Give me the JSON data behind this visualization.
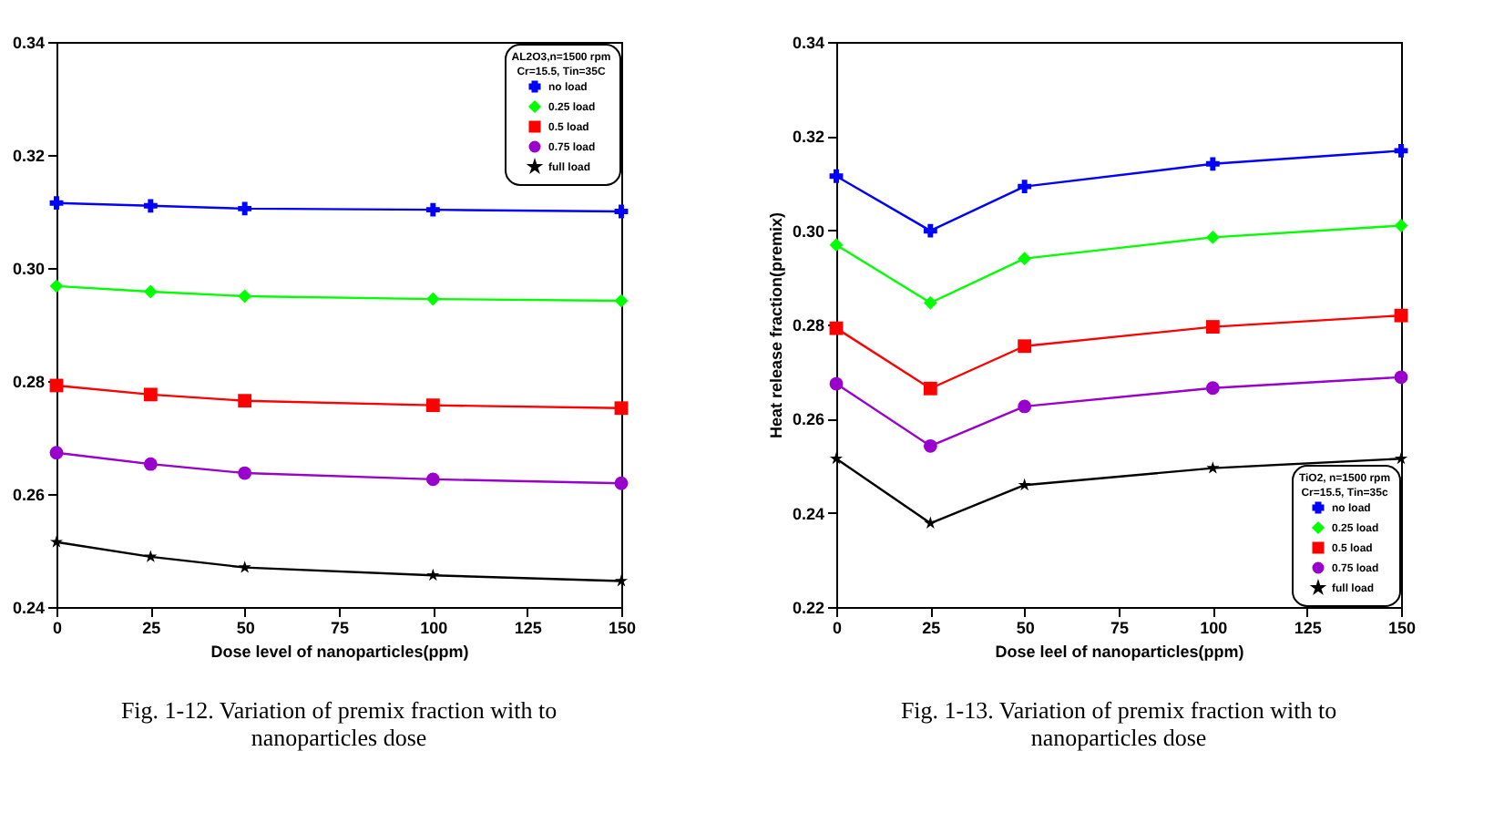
{
  "chart_data": [
    {
      "type": "line",
      "xlabel": "Dose level of nanoparticles(ppm)",
      "legend_title": "AL2O3,n=1500 rpm\nCr=15.5, Tin=35C",
      "x": [
        0,
        25,
        50,
        100,
        150
      ],
      "series": [
        {
          "name": "no load",
          "color": "#0000ff",
          "marker": "cross",
          "values": [
            0.3115,
            0.311,
            0.3105,
            0.3103,
            0.31
          ]
        },
        {
          "name": "0.25 load",
          "color": "#00ff00",
          "marker": "diamond",
          "values": [
            0.2968,
            0.2958,
            0.295,
            0.2945,
            0.2942
          ]
        },
        {
          "name": "0.5 load",
          "color": "#ff0000",
          "marker": "square",
          "values": [
            0.2792,
            0.2776,
            0.2765,
            0.2757,
            0.2752
          ]
        },
        {
          "name": "0.75 load",
          "color": "#9900cc",
          "marker": "circle",
          "values": [
            0.2673,
            0.2653,
            0.2637,
            0.2626,
            0.2619
          ]
        },
        {
          "name": "full load",
          "color": "#000000",
          "marker": "star",
          "values": [
            0.2515,
            0.2489,
            0.247,
            0.2456,
            0.2446
          ]
        }
      ],
      "xlim": [
        0,
        150
      ],
      "xticks": [
        0,
        25,
        50,
        75,
        100,
        125,
        150
      ],
      "ylim": [
        0.24,
        0.34
      ],
      "yticks": [
        0.24,
        0.26,
        0.28,
        {
          "value": 0.3,
          "label": "0.30"
        },
        0.32,
        0.34
      ],
      "grid": false,
      "legend": "top right",
      "line_style": "solid",
      "annotations": [
        "Fig. 1-12. Variation of premix fraction with to nanoparticles dose"
      ]
    },
    {
      "type": "line",
      "xlabel": "Dose leel of nanoparticles(ppm)",
      "ylabel": "Heat release fraction(premix)",
      "legend_title": "TiO2, n=1500 rpm\nCr=15.5, Tin=35c",
      "x": [
        0,
        25,
        50,
        100,
        150
      ],
      "series": [
        {
          "name": "no load",
          "color": "#0000ff",
          "marker": "cross",
          "values": [
            0.3115,
            0.2999,
            0.3093,
            0.3141,
            0.3169
          ]
        },
        {
          "name": "0.25 load",
          "color": "#00ff00",
          "marker": "diamond",
          "values": [
            0.2969,
            0.2846,
            0.294,
            0.2985,
            0.301
          ]
        },
        {
          "name": "0.5 load",
          "color": "#ff0000",
          "marker": "square",
          "values": [
            0.2792,
            0.2664,
            0.2754,
            0.2795,
            0.2819
          ]
        },
        {
          "name": "0.75 load",
          "color": "#9900cc",
          "marker": "circle",
          "values": [
            0.2674,
            0.2542,
            0.2626,
            0.2665,
            0.2688
          ]
        },
        {
          "name": "full load",
          "color": "#000000",
          "marker": "star",
          "values": [
            0.2515,
            0.2378,
            0.2459,
            0.2495,
            0.2515
          ]
        }
      ],
      "xlim": [
        0,
        150
      ],
      "xticks": [
        0,
        25,
        50,
        75,
        100,
        125,
        150
      ],
      "ylim": [
        0.22,
        0.34
      ],
      "yticks": [
        0.22,
        0.24,
        0.26,
        0.28,
        {
          "value": 0.3,
          "label": "0.30"
        },
        0.32,
        0.34
      ],
      "grid": false,
      "legend": "bottom right",
      "line_style": "solid",
      "annotations": [
        "Fig. 1-13. Variation of premix fraction with to nanoparticles dose"
      ]
    }
  ]
}
